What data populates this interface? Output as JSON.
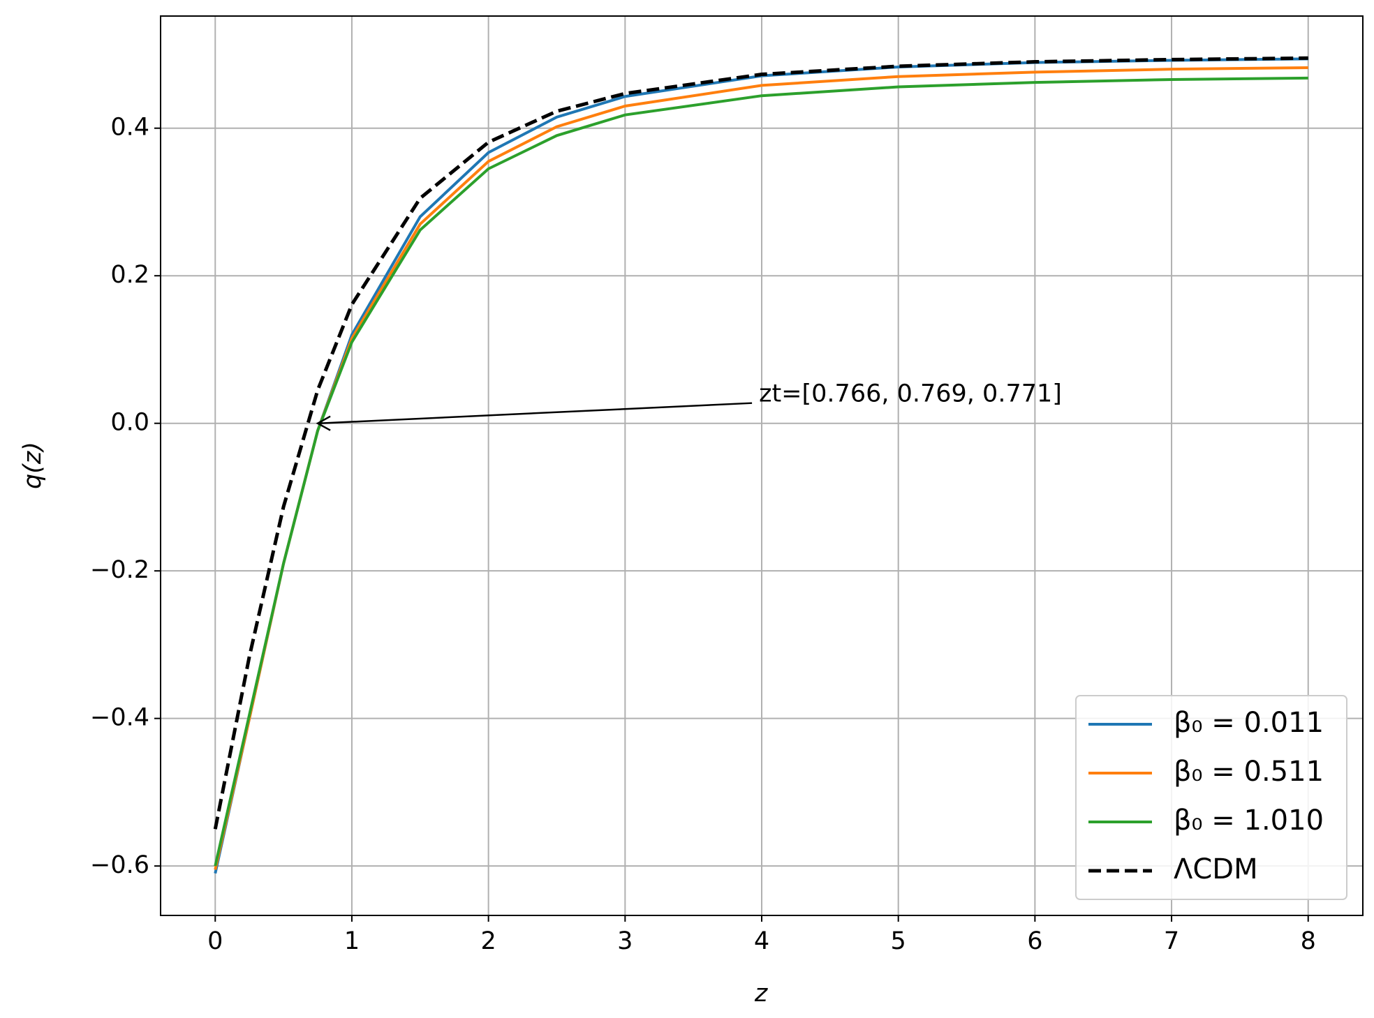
{
  "chart_data": {
    "type": "line",
    "x_label": "z",
    "y_label": "q(z)",
    "annotation": "zt=[0.766, 0.769, 0.771]",
    "x": [
      0,
      0.25,
      0.5,
      0.75,
      1,
      1.5,
      2,
      2.5,
      3,
      4,
      5,
      6,
      7,
      8
    ],
    "series": [
      {
        "name": "β₀ = 0.011",
        "color": "#1f77b4",
        "values": [
          -0.61,
          -0.4,
          -0.19,
          -0.01,
          0.12,
          0.28,
          0.367,
          0.415,
          0.443,
          0.471,
          0.483,
          0.489,
          0.492,
          0.494
        ]
      },
      {
        "name": "β₀ = 0.511",
        "color": "#ff7f0e",
        "values": [
          -0.605,
          -0.4,
          -0.19,
          -0.01,
          0.115,
          0.27,
          0.355,
          0.402,
          0.43,
          0.458,
          0.47,
          0.476,
          0.48,
          0.482
        ]
      },
      {
        "name": "β₀ = 1.010",
        "color": "#2ca02c",
        "values": [
          -0.6,
          -0.395,
          -0.19,
          -0.01,
          0.11,
          0.262,
          0.345,
          0.39,
          0.418,
          0.444,
          0.456,
          0.462,
          0.466,
          0.468
        ]
      },
      {
        "name": "ΛCDM",
        "color": "#000000",
        "dashed": true,
        "values": [
          -0.55,
          -0.316,
          -0.113,
          0.045,
          0.161,
          0.305,
          0.381,
          0.423,
          0.447,
          0.473,
          0.484,
          0.49,
          0.493,
          0.495
        ]
      }
    ],
    "xlim": [
      -0.4,
      8.4
    ],
    "ylim": [
      -0.667,
      0.552
    ],
    "xticks": [
      0,
      1,
      2,
      3,
      4,
      5,
      6,
      7,
      8
    ],
    "yticks": [
      {
        "value": -0.6,
        "label": "−0.6"
      },
      {
        "value": -0.4,
        "label": "−0.4"
      },
      {
        "value": -0.2,
        "label": "−0.2"
      },
      {
        "value": 0,
        "label": "0.0"
      },
      0.2,
      0.4
    ],
    "grid": true,
    "legend": "lower right"
  }
}
